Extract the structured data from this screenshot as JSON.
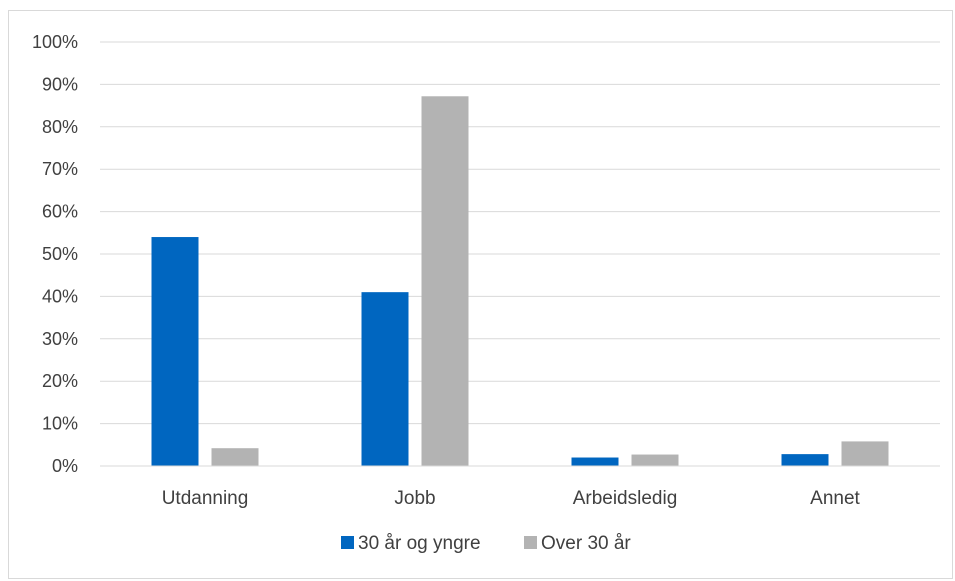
{
  "chart_data": {
    "type": "bar",
    "title": "",
    "xlabel": "",
    "ylabel": "",
    "categories": [
      "Utdanning",
      "Jobb",
      "Arbeidsledig",
      "Annet"
    ],
    "series": [
      {
        "name": "30 år og yngre",
        "color": "#0066c0",
        "values": [
          54,
          41,
          2,
          2.8
        ]
      },
      {
        "name": "Over 30 år",
        "color": "#b3b3b3",
        "values": [
          4.2,
          87.2,
          2.7,
          5.8
        ]
      }
    ],
    "ylim": [
      0,
      100
    ],
    "yticks": [
      "0%",
      "10%",
      "20%",
      "30%",
      "40%",
      "50%",
      "60%",
      "70%",
      "80%",
      "90%",
      "100%"
    ],
    "grid": true,
    "legend": "bottom-center"
  }
}
